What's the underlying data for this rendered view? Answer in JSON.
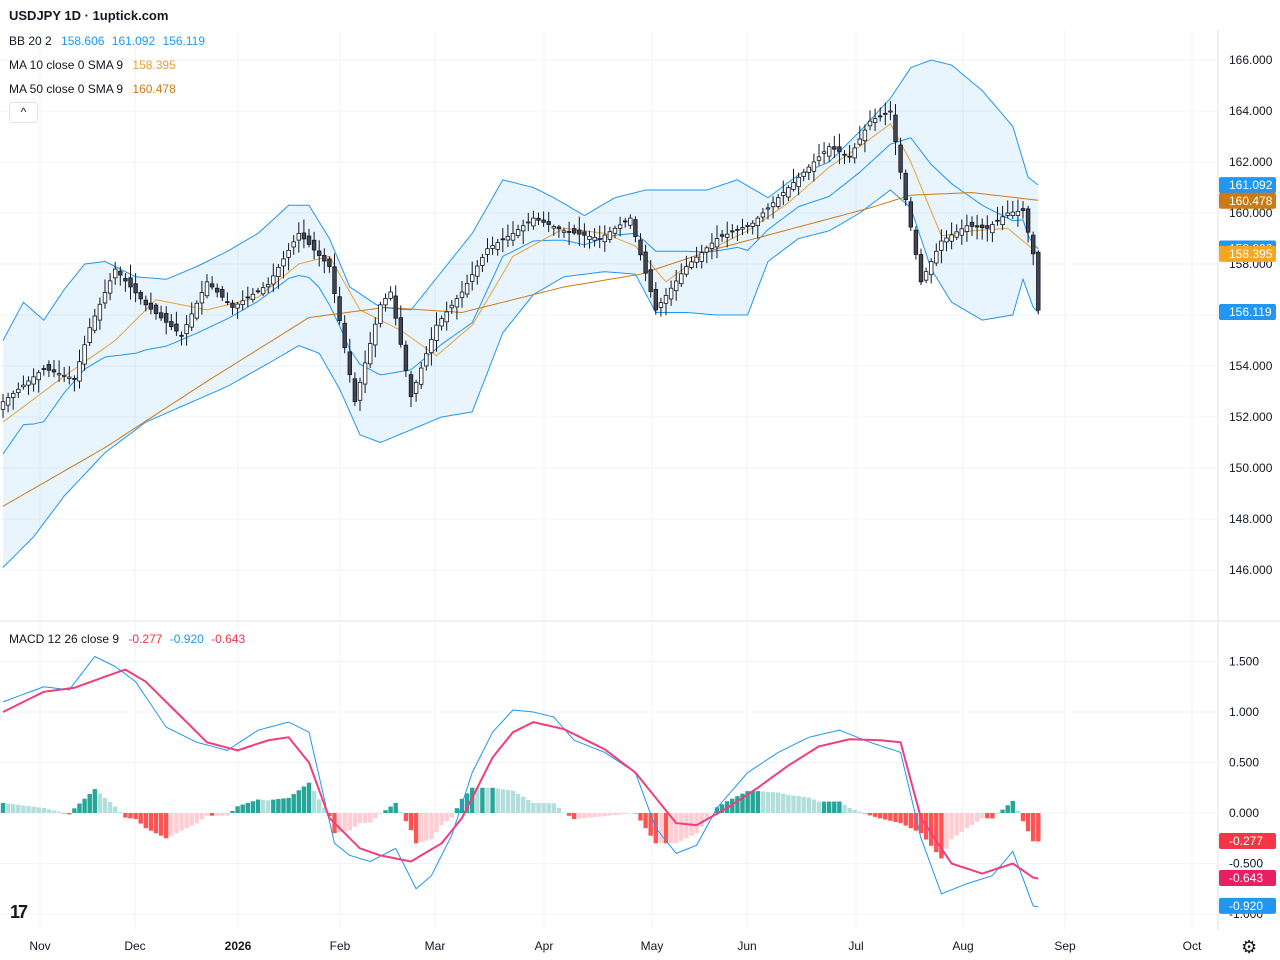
{
  "header": {
    "title": "USDJPY 1D · 1uptick.com",
    "bb": {
      "label": "BB 20 2",
      "values": [
        "158.606",
        "161.092",
        "156.119"
      ],
      "color": "#2196f3"
    },
    "ma10": {
      "label": "MA 10 close 0 SMA 9",
      "value": "158.395",
      "color": "#e8a23a"
    },
    "ma50": {
      "label": "MA 50 close 0 SMA 9",
      "value": "160.478",
      "color": "#cc7a14"
    },
    "collapse_label": "^"
  },
  "macd_header": {
    "label": "MACD 12 26 close 9",
    "values": [
      "-0.277",
      "-0.920",
      "-0.643"
    ],
    "colors": [
      "#f23645",
      "#2196f3",
      "#f23645"
    ]
  },
  "tv_logo": "17",
  "settings_icon": "gear-icon",
  "chart_data": {
    "type": "candlestick",
    "price_ticks": [
      "166.000",
      "164.000",
      "162.000",
      "160.000",
      "158.000",
      "156.000",
      "154.000",
      "152.000",
      "150.000",
      "148.000",
      "146.000"
    ],
    "macd_ticks": [
      "1.500",
      "1.000",
      "0.500",
      "0.000",
      "-0.500",
      "-1.000"
    ],
    "x_labels": [
      "Nov",
      "Dec",
      "2026",
      "Feb",
      "Mar",
      "Apr",
      "May",
      "Jun",
      "Jul",
      "Aug",
      "Sep",
      "Oct"
    ],
    "price_labels": [
      {
        "text": "161.092",
        "color": "#2196f3",
        "value": 161.092
      },
      {
        "text": "160.478",
        "color": "#cc7a14",
        "value": 160.478
      },
      {
        "text": "158.606",
        "color": "#2196f3",
        "value": 158.606
      },
      {
        "text": "158.395",
        "color": "#f5a623",
        "value": 158.395
      },
      {
        "text": "156.193",
        "color": "#ffffff",
        "value": 156.193
      },
      {
        "text": "156.119",
        "color": "#2196f3",
        "value": 156.119
      }
    ],
    "macd_labels": [
      {
        "text": "-0.277",
        "color": "#f23645",
        "value": -0.277
      },
      {
        "text": "-0.643",
        "color": "#e91e63",
        "value": -0.643
      },
      {
        "text": "-0.920",
        "color": "#2196f3",
        "value": -0.92
      }
    ],
    "anchors": {
      "close": [
        [
          0,
          152.6
        ],
        [
          8,
          153.9
        ],
        [
          14,
          153.5
        ],
        [
          17,
          155.5
        ],
        [
          22,
          157.8
        ],
        [
          28,
          156.4
        ],
        [
          35,
          155.2
        ],
        [
          40,
          157.3
        ],
        [
          45,
          156.3
        ],
        [
          52,
          157.2
        ],
        [
          58,
          159.2
        ],
        [
          64,
          157.9
        ],
        [
          69,
          152.6
        ],
        [
          74,
          156.4
        ],
        [
          76,
          156.9
        ],
        [
          80,
          152.8
        ],
        [
          85,
          155.6
        ],
        [
          90,
          156.9
        ],
        [
          95,
          158.6
        ],
        [
          100,
          159.2
        ],
        [
          104,
          159.8
        ],
        [
          110,
          159.3
        ],
        [
          117,
          159.0
        ],
        [
          123,
          159.8
        ],
        [
          128,
          156.2
        ],
        [
          134,
          157.9
        ],
        [
          140,
          159.0
        ],
        [
          147,
          159.6
        ],
        [
          153,
          160.8
        ],
        [
          158,
          161.8
        ],
        [
          162,
          162.6
        ],
        [
          166,
          162.2
        ],
        [
          170,
          163.6
        ],
        [
          174,
          164.0
        ],
        [
          176,
          161.6
        ],
        [
          180,
          157.3
        ],
        [
          184,
          158.9
        ],
        [
          189,
          159.5
        ],
        [
          193,
          159.4
        ],
        [
          197,
          160.0
        ],
        [
          200,
          160.1
        ],
        [
          202,
          158.4
        ],
        [
          203,
          156.2
        ]
      ],
      "ma10": [
        [
          0,
          151.8
        ],
        [
          12,
          153.6
        ],
        [
          22,
          155.0
        ],
        [
          30,
          156.6
        ],
        [
          40,
          156.2
        ],
        [
          50,
          156.7
        ],
        [
          58,
          158.0
        ],
        [
          64,
          158.3
        ],
        [
          70,
          156.2
        ],
        [
          78,
          155.4
        ],
        [
          85,
          154.4
        ],
        [
          92,
          155.6
        ],
        [
          100,
          158.3
        ],
        [
          110,
          159.4
        ],
        [
          118,
          159.2
        ],
        [
          124,
          158.7
        ],
        [
          130,
          157.3
        ],
        [
          138,
          158.5
        ],
        [
          146,
          159.3
        ],
        [
          154,
          160.4
        ],
        [
          162,
          161.8
        ],
        [
          168,
          162.6
        ],
        [
          174,
          163.5
        ],
        [
          178,
          162.0
        ],
        [
          184,
          159.1
        ],
        [
          190,
          159.3
        ],
        [
          197,
          159.4
        ],
        [
          203,
          158.4
        ]
      ],
      "ma50": [
        [
          0,
          148.5
        ],
        [
          20,
          150.8
        ],
        [
          40,
          153.4
        ],
        [
          60,
          155.9
        ],
        [
          75,
          156.3
        ],
        [
          90,
          156.1
        ],
        [
          110,
          157.1
        ],
        [
          125,
          157.6
        ],
        [
          140,
          158.6
        ],
        [
          155,
          159.4
        ],
        [
          170,
          160.2
        ],
        [
          178,
          160.7
        ],
        [
          190,
          160.8
        ],
        [
          203,
          160.5
        ]
      ],
      "bbu": [
        [
          0,
          155.0
        ],
        [
          4,
          156.5
        ],
        [
          8,
          155.8
        ],
        [
          12,
          157.0
        ],
        [
          16,
          158.0
        ],
        [
          20,
          158.1
        ],
        [
          26,
          157.5
        ],
        [
          32,
          157.4
        ],
        [
          38,
          157.9
        ],
        [
          44,
          158.5
        ],
        [
          50,
          159.2
        ],
        [
          56,
          160.3
        ],
        [
          60,
          160.3
        ],
        [
          64,
          159.0
        ],
        [
          68,
          157.1
        ],
        [
          74,
          156.3
        ],
        [
          80,
          156.2
        ],
        [
          86,
          157.7
        ],
        [
          92,
          159.2
        ],
        [
          98,
          161.3
        ],
        [
          104,
          161.0
        ],
        [
          108,
          160.6
        ],
        [
          114,
          159.9
        ],
        [
          120,
          160.6
        ],
        [
          126,
          160.9
        ],
        [
          132,
          160.9
        ],
        [
          138,
          160.9
        ],
        [
          144,
          161.3
        ],
        [
          150,
          160.6
        ],
        [
          156,
          161.5
        ],
        [
          162,
          162.0
        ],
        [
          168,
          163.2
        ],
        [
          174,
          164.5
        ],
        [
          178,
          165.7
        ],
        [
          182,
          166.0
        ],
        [
          186,
          165.8
        ],
        [
          192,
          164.8
        ],
        [
          198,
          163.4
        ],
        [
          201,
          161.4
        ],
        [
          203,
          161.1
        ]
      ],
      "bbl": [
        [
          0,
          146.1
        ],
        [
          6,
          147.3
        ],
        [
          12,
          148.9
        ],
        [
          20,
          150.6
        ],
        [
          28,
          151.8
        ],
        [
          36,
          152.5
        ],
        [
          44,
          153.2
        ],
        [
          52,
          154.1
        ],
        [
          58,
          154.8
        ],
        [
          62,
          154.5
        ],
        [
          66,
          153.1
        ],
        [
          70,
          151.3
        ],
        [
          74,
          151.0
        ],
        [
          80,
          151.5
        ],
        [
          86,
          152.0
        ],
        [
          92,
          152.2
        ],
        [
          98,
          155.3
        ],
        [
          104,
          156.8
        ],
        [
          110,
          157.5
        ],
        [
          118,
          157.7
        ],
        [
          124,
          157.6
        ],
        [
          128,
          156.1
        ],
        [
          134,
          156.1
        ],
        [
          140,
          156.0
        ],
        [
          146,
          156.0
        ],
        [
          150,
          158.1
        ],
        [
          156,
          159.0
        ],
        [
          162,
          159.3
        ],
        [
          168,
          160.0
        ],
        [
          174,
          160.9
        ],
        [
          178,
          160.2
        ],
        [
          182,
          157.8
        ],
        [
          186,
          156.5
        ],
        [
          192,
          155.8
        ],
        [
          198,
          156.0
        ],
        [
          200,
          157.4
        ],
        [
          202,
          156.3
        ],
        [
          203,
          156.1
        ]
      ],
      "macd": [
        [
          0,
          1.1
        ],
        [
          8,
          1.25
        ],
        [
          13,
          1.22
        ],
        [
          18,
          1.55
        ],
        [
          22,
          1.45
        ],
        [
          26,
          1.3
        ],
        [
          32,
          0.85
        ],
        [
          38,
          0.7
        ],
        [
          44,
          0.62
        ],
        [
          50,
          0.82
        ],
        [
          56,
          0.9
        ],
        [
          60,
          0.8
        ],
        [
          65,
          -0.3
        ],
        [
          68,
          -0.42
        ],
        [
          72,
          -0.48
        ],
        [
          77,
          -0.35
        ],
        [
          81,
          -0.75
        ],
        [
          84,
          -0.62
        ],
        [
          88,
          -0.22
        ],
        [
          92,
          0.4
        ],
        [
          96,
          0.8
        ],
        [
          100,
          1.02
        ],
        [
          104,
          1.0
        ],
        [
          108,
          0.95
        ],
        [
          112,
          0.72
        ],
        [
          118,
          0.6
        ],
        [
          124,
          0.4
        ],
        [
          128,
          -0.15
        ],
        [
          132,
          -0.4
        ],
        [
          136,
          -0.32
        ],
        [
          140,
          0.05
        ],
        [
          146,
          0.4
        ],
        [
          152,
          0.6
        ],
        [
          158,
          0.75
        ],
        [
          164,
          0.82
        ],
        [
          170,
          0.7
        ],
        [
          176,
          0.6
        ],
        [
          180,
          -0.25
        ],
        [
          184,
          -0.8
        ],
        [
          189,
          -0.7
        ],
        [
          194,
          -0.62
        ],
        [
          198,
          -0.38
        ],
        [
          202,
          -0.92
        ]
      ],
      "signal": [
        [
          0,
          1.0
        ],
        [
          8,
          1.2
        ],
        [
          14,
          1.24
        ],
        [
          20,
          1.35
        ],
        [
          24,
          1.42
        ],
        [
          28,
          1.3
        ],
        [
          34,
          1.0
        ],
        [
          40,
          0.7
        ],
        [
          46,
          0.62
        ],
        [
          52,
          0.72
        ],
        [
          56,
          0.75
        ],
        [
          60,
          0.5
        ],
        [
          64,
          -0.05
        ],
        [
          70,
          -0.35
        ],
        [
          74,
          -0.42
        ],
        [
          80,
          -0.48
        ],
        [
          86,
          -0.3
        ],
        [
          90,
          -0.05
        ],
        [
          96,
          0.55
        ],
        [
          100,
          0.8
        ],
        [
          104,
          0.9
        ],
        [
          110,
          0.83
        ],
        [
          118,
          0.63
        ],
        [
          124,
          0.4
        ],
        [
          128,
          0.15
        ],
        [
          132,
          -0.1
        ],
        [
          136,
          -0.12
        ],
        [
          142,
          0.05
        ],
        [
          148,
          0.25
        ],
        [
          154,
          0.47
        ],
        [
          160,
          0.66
        ],
        [
          166,
          0.73
        ],
        [
          172,
          0.72
        ],
        [
          176,
          0.7
        ],
        [
          180,
          -0.05
        ],
        [
          186,
          -0.5
        ],
        [
          192,
          -0.6
        ],
        [
          198,
          -0.5
        ],
        [
          202,
          -0.64
        ]
      ]
    },
    "last_close": 156.193
  }
}
